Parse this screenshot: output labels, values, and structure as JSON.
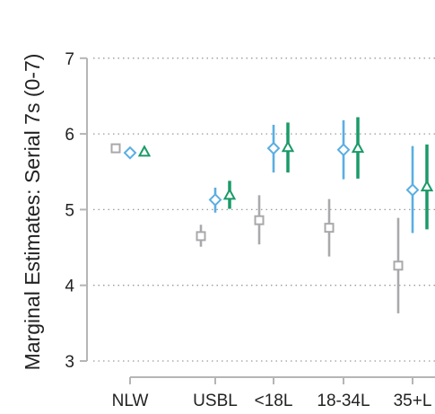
{
  "chart_data": {
    "type": "scatter",
    "ylabel": "Marginal Estimates: Serial 7s (0-7)",
    "xlabel": "",
    "categories": [
      "NLW",
      "USBL",
      "<18L",
      "18-34L",
      "35+L"
    ],
    "ylim": [
      3,
      7
    ],
    "yticks": [
      3,
      4,
      5,
      6,
      7
    ],
    "grid": "horizontal-dotted",
    "series": [
      {
        "marker": "square",
        "color": "#a9a9ad",
        "values": [
          5.81,
          4.65,
          4.86,
          4.76,
          4.26
        ],
        "lower": [
          5.81,
          4.51,
          4.54,
          4.38,
          3.63
        ],
        "upper": [
          5.81,
          4.8,
          5.19,
          5.14,
          4.89
        ]
      },
      {
        "marker": "diamond",
        "color": "#5aaee2",
        "values": [
          5.75,
          5.13,
          5.81,
          5.79,
          5.26
        ],
        "lower": [
          5.75,
          4.96,
          5.49,
          5.4,
          4.69
        ],
        "upper": [
          5.75,
          5.29,
          6.12,
          6.18,
          5.84
        ]
      },
      {
        "marker": "triangle",
        "color": "#1a9a68",
        "values": [
          5.76,
          5.19,
          5.82,
          5.81,
          5.3
        ],
        "lower": [
          5.76,
          5.01,
          5.49,
          5.41,
          4.74
        ],
        "upper": [
          5.76,
          5.38,
          6.15,
          6.22,
          5.86
        ]
      }
    ]
  }
}
